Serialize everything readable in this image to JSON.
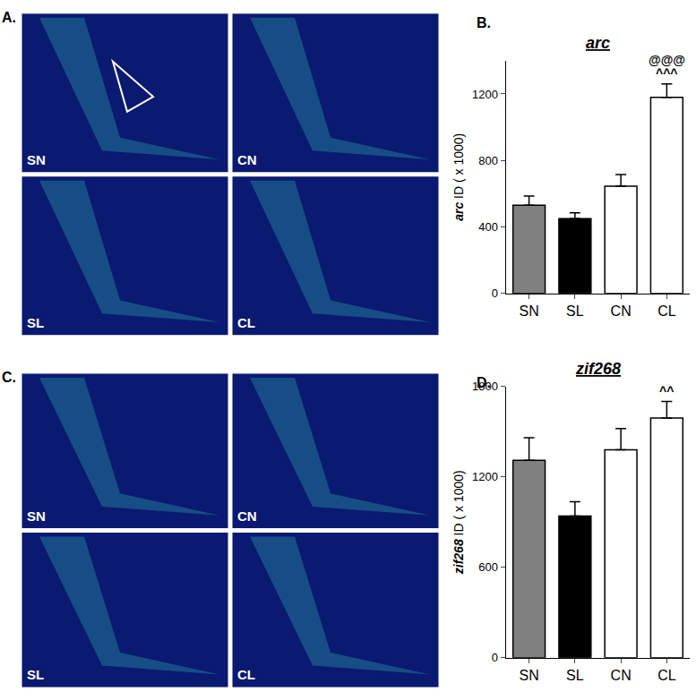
{
  "image_panels": [
    {
      "label": "A.",
      "images": [
        "SN",
        "CN",
        "SL",
        "CL"
      ]
    },
    {
      "label": "C.",
      "images": [
        "SN",
        "CN",
        "SL",
        "CL"
      ]
    }
  ],
  "chart_data": [
    {
      "type": "bar",
      "panel_label": "B.",
      "title": "arc",
      "y_label": "arc ID ( x 1000)",
      "categories": [
        "SN",
        "SL",
        "CN",
        "CL"
      ],
      "values": [
        530,
        450,
        645,
        1180
      ],
      "errors": [
        55,
        35,
        70,
        80
      ],
      "colors": [
        "#808080",
        "#000000",
        "#999999",
        "#000000"
      ],
      "ylim": [
        0,
        1400
      ],
      "yticks": [
        0,
        400,
        800,
        1200
      ],
      "grid": false,
      "annotations": [
        {
          "category": "CL",
          "text": "^^^"
        },
        {
          "category": "CL",
          "text": "@@@"
        }
      ]
    },
    {
      "type": "bar",
      "panel_label": "D.",
      "title": "zif268",
      "y_label": "zif268 ID ( x 1000)",
      "categories": [
        "SN",
        "SL",
        "CN",
        "CL"
      ],
      "values": [
        1310,
        940,
        1380,
        1590
      ],
      "errors": [
        150,
        95,
        140,
        110
      ],
      "colors": [
        "#808080",
        "#000000",
        "#999999",
        "#000000"
      ],
      "ylim": [
        0,
        1800
      ],
      "yticks": [
        0,
        600,
        1200,
        1800
      ],
      "grid": false,
      "annotations": [
        {
          "category": "CL",
          "text": "^^"
        }
      ]
    }
  ]
}
